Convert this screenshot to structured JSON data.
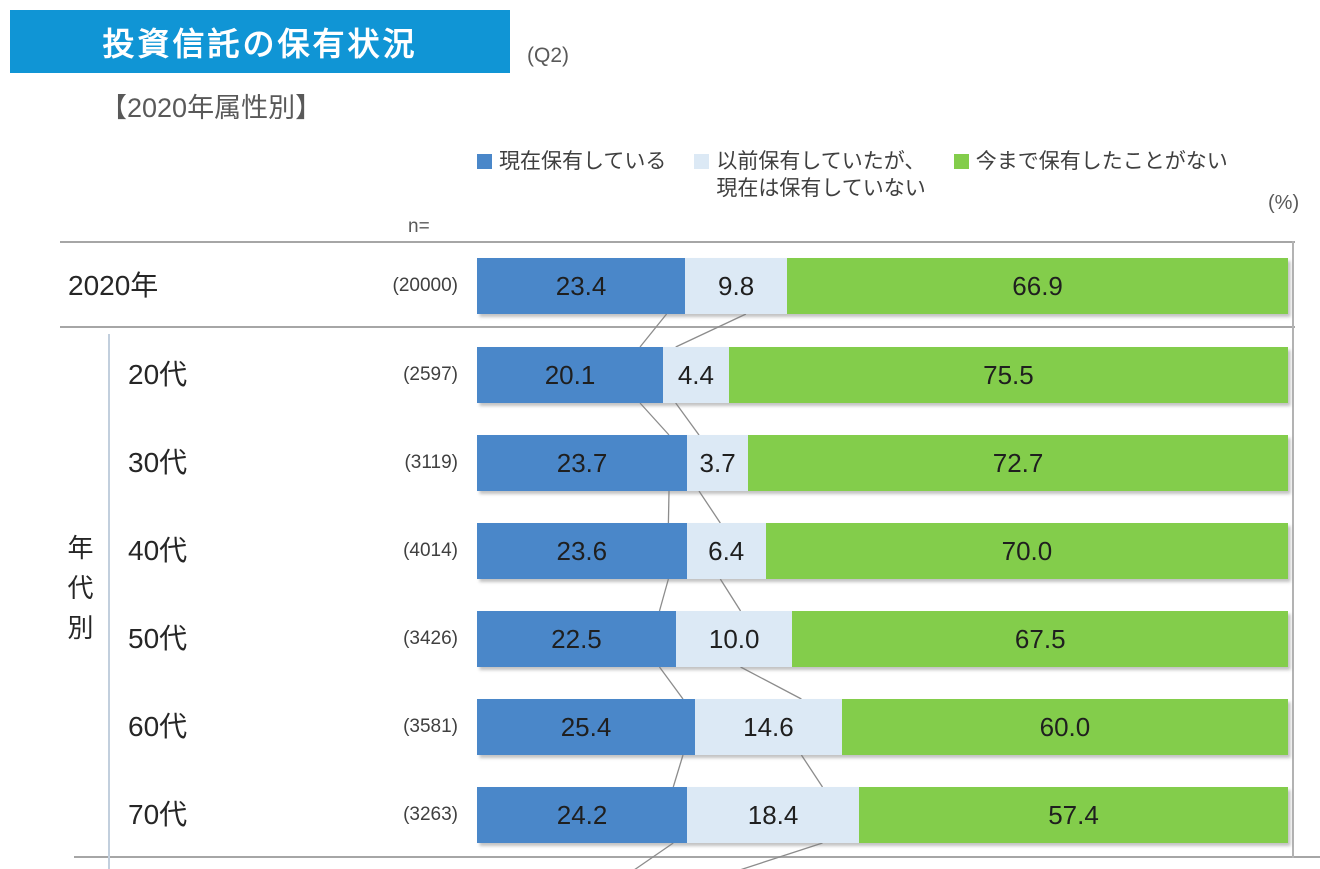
{
  "header": {
    "title": "投資信託の保有状況",
    "question_tag": "(Q2)",
    "subtitle": "【2020年属性別】"
  },
  "chart_data": {
    "type": "bar",
    "variant": "horizontal-stacked",
    "unit_label": "(%)",
    "n_header": "n=",
    "row_group_label": "年代別",
    "axis_range": [
      0,
      100
    ],
    "colors": {
      "current": "#4A87C9",
      "previous": "#DCE9F5",
      "never": "#83CD4B"
    },
    "legend": [
      {
        "name": "current",
        "label": "現在保有している",
        "label_lines": [
          "現在保有している"
        ],
        "color": "#4A87C9"
      },
      {
        "name": "previous",
        "label": "以前保有していたが、現在は保有していない",
        "label_lines": [
          "以前保有していたが、",
          "現在は保有していない"
        ],
        "color": "#DCE9F5"
      },
      {
        "name": "never",
        "label": "今まで保有したことがない",
        "label_lines": [
          "今まで保有したことがない"
        ],
        "color": "#83CD4B"
      }
    ],
    "categories": [
      "2020年",
      "20代",
      "30代",
      "40代",
      "50代",
      "60代",
      "70代"
    ],
    "rows": [
      {
        "label": "2020年",
        "n": "(20000)",
        "values": [
          23.4,
          9.8,
          66.9
        ]
      },
      {
        "label": "20代",
        "n": "(2597)",
        "values": [
          20.1,
          4.4,
          75.5
        ]
      },
      {
        "label": "30代",
        "n": "(3119)",
        "values": [
          23.7,
          3.7,
          72.7
        ]
      },
      {
        "label": "40代",
        "n": "(4014)",
        "values": [
          23.6,
          6.4,
          70.0
        ]
      },
      {
        "label": "50代",
        "n": "(3426)",
        "values": [
          22.5,
          10.0,
          67.5
        ]
      },
      {
        "label": "60代",
        "n": "(3581)",
        "values": [
          25.4,
          14.6,
          60.0
        ]
      },
      {
        "label": "70代",
        "n": "(3263)",
        "values": [
          24.2,
          18.4,
          57.4
        ]
      }
    ]
  }
}
